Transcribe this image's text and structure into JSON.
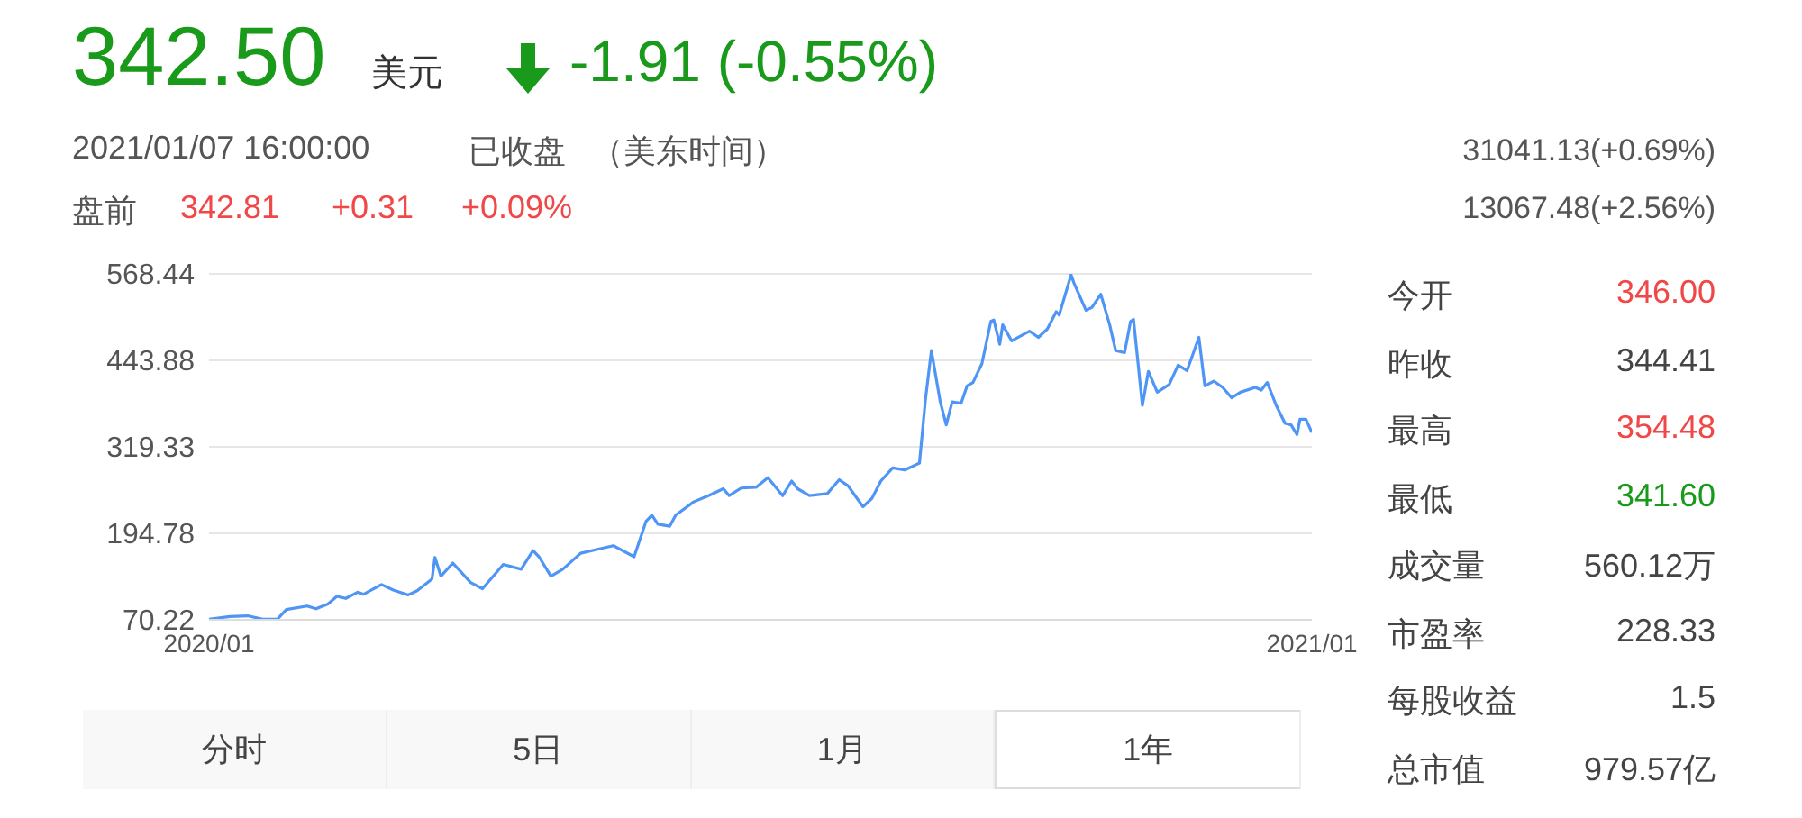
{
  "chart_data": {
    "type": "line",
    "x": [
      "2020-01-02",
      "2020-01-09",
      "2020-01-15",
      "2020-01-20",
      "2020-01-25",
      "2020-01-28",
      "2020-02-04",
      "2020-02-07",
      "2020-02-11",
      "2020-02-14",
      "2020-02-17",
      "2020-02-21",
      "2020-02-23",
      "2020-02-29",
      "2020-03-04",
      "2020-03-09",
      "2020-03-12",
      "2020-03-17",
      "2020-03-18",
      "2020-03-20",
      "2020-03-24",
      "2020-03-30",
      "2020-04-03",
      "2020-04-10",
      "2020-04-16",
      "2020-04-20",
      "2020-04-22",
      "2020-04-26",
      "2020-04-30",
      "2020-05-06",
      "2020-05-13",
      "2020-05-17",
      "2020-05-24",
      "2020-05-28",
      "2020-05-30",
      "2020-06-01",
      "2020-06-05",
      "2020-06-07",
      "2020-06-13",
      "2020-06-18",
      "2020-06-23",
      "2020-06-25",
      "2020-06-29",
      "2020-07-04",
      "2020-07-08",
      "2020-07-13",
      "2020-07-16",
      "2020-07-18",
      "2020-07-22",
      "2020-07-28",
      "2020-08-01",
      "2020-08-04",
      "2020-08-09",
      "2020-08-12",
      "2020-08-15",
      "2020-08-19",
      "2020-08-23",
      "2020-08-28",
      "2020-08-30",
      "2020-09-01",
      "2020-09-04",
      "2020-09-06",
      "2020-09-08",
      "2020-09-11",
      "2020-09-13",
      "2020-09-15",
      "2020-09-18",
      "2020-09-21",
      "2020-09-22",
      "2020-09-24",
      "2020-09-25",
      "2020-09-28",
      "2020-10-04",
      "2020-10-07",
      "2020-10-10",
      "2020-10-13",
      "2020-10-14",
      "2020-10-18",
      "2020-10-19",
      "2020-10-23",
      "2020-10-25",
      "2020-10-28",
      "2020-10-31",
      "2020-11-02",
      "2020-11-05",
      "2020-11-07",
      "2020-11-08",
      "2020-11-11",
      "2020-11-13",
      "2020-11-16",
      "2020-11-20",
      "2020-11-23",
      "2020-11-26",
      "2020-11-30",
      "2020-12-02",
      "2020-12-05",
      "2020-12-08",
      "2020-12-11",
      "2020-12-14",
      "2020-12-19",
      "2020-12-21",
      "2020-12-23",
      "2020-12-26",
      "2020-12-29",
      "2020-12-31",
      "2021-01-02",
      "2021-01-03",
      "2021-01-05",
      "2021-01-07"
    ],
    "series": [
      {
        "color": "#4e95f5",
        "values": [
          71,
          75,
          76,
          71,
          71,
          85,
          90,
          86,
          93,
          104,
          101,
          110,
          107,
          121,
          113,
          106,
          112,
          129,
          160,
          133,
          152,
          124,
          115,
          150,
          143,
          170,
          161,
          133,
          143,
          166,
          173,
          177,
          161,
          212,
          221,
          208,
          205,
          221,
          240,
          249,
          259,
          249,
          260,
          261,
          275,
          249,
          270,
          259,
          249,
          252,
          272,
          263,
          233,
          245,
          270,
          289,
          286,
          296,
          387,
          458,
          384,
          351,
          384,
          382,
          407,
          412,
          439,
          500,
          502,
          467,
          495,
          472,
          486,
          477,
          489,
          514,
          509,
          567,
          555,
          516,
          520,
          539,
          495,
          458,
          455,
          500,
          503,
          379,
          428,
          398,
          409,
          437,
          429,
          477,
          407,
          414,
          405,
          390,
          398,
          405,
          401,
          412,
          379,
          353,
          351,
          337,
          359,
          359,
          340
        ]
      }
    ],
    "xlim": [
      "2020-01-02",
      "2021-01-07"
    ],
    "xticks": [
      {
        "value": "2020-01-02",
        "label": "2020/01"
      },
      {
        "value": "2021-01-07",
        "label": "2021/01"
      }
    ],
    "ylim": [
      70.22,
      568.44
    ],
    "yticks": [
      70.22,
      194.78,
      319.33,
      443.88,
      568.44
    ],
    "grid": "y",
    "marker": "none",
    "line_style": "solid",
    "annotations": [
      "342.50",
      "美元",
      "-1.91 (-0.55%)",
      "2021/01/07 16:00:00",
      "已收盘",
      "（美东时间）",
      "盘前",
      "342.81",
      "+0.31",
      "+0.09%",
      "31041.13(+0.69%)",
      "13067.48(+2.56%)",
      "今开",
      "346.00",
      "昨收",
      "344.41",
      "最高",
      "354.48",
      "最低",
      "341.60",
      "成交量",
      "560.12万",
      "市盈率",
      "228.33",
      "每股收益",
      "1.5",
      "总市值",
      "979.57亿",
      "分时",
      "5日",
      "1月",
      "1年"
    ]
  }
}
